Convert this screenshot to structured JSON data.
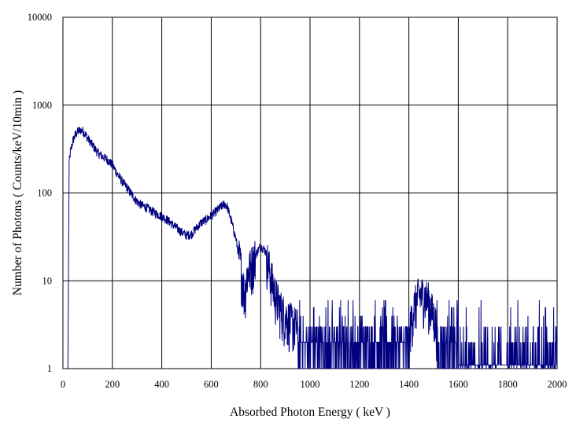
{
  "chart_data": {
    "type": "line",
    "title": "",
    "xlabel": "Absorbed Photon Energy  ( keV )",
    "ylabel": "Number  of Photons ( Counts/keV/10min  )",
    "xlim": [
      0,
      2000
    ],
    "ylim": [
      1,
      10000
    ],
    "yscale": "log",
    "grid": true,
    "legend": "none",
    "x_ticks": [
      "0",
      "200",
      "400",
      "600",
      "800",
      "1000",
      "1200",
      "1400",
      "1600",
      "1800",
      "2000"
    ],
    "y_ticks": [
      "1",
      "10",
      "100",
      "1000",
      "10000"
    ],
    "series_color": "#000080",
    "series": [
      {
        "x": [
          20,
          25,
          30,
          40,
          50,
          60,
          70,
          80,
          90,
          100,
          120,
          140,
          160,
          180,
          200,
          220,
          240,
          260,
          280,
          300,
          320,
          340,
          360,
          380,
          400,
          420,
          440,
          460,
          480,
          500,
          520,
          540,
          560,
          580,
          600,
          620,
          640,
          655,
          665,
          680,
          700,
          720,
          735,
          745,
          760,
          780,
          800,
          820,
          840,
          860,
          880,
          900,
          950,
          1000,
          1050,
          1100,
          1150,
          1200,
          1250,
          1300,
          1350,
          1400,
          1420,
          1440,
          1460,
          1480,
          1500,
          1520,
          1550,
          1600,
          1650,
          1700,
          1750,
          1800,
          1850,
          1900,
          1950,
          2000
        ],
        "y": [
          1,
          220,
          290,
          390,
          460,
          500,
          520,
          510,
          470,
          420,
          350,
          290,
          260,
          240,
          210,
          165,
          135,
          115,
          95,
          80,
          72,
          68,
          62,
          58,
          54,
          50,
          45,
          40,
          36,
          33,
          34,
          40,
          46,
          50,
          55,
          62,
          70,
          75,
          70,
          50,
          30,
          15,
          7,
          12,
          15,
          20,
          25,
          22,
          12,
          7,
          5,
          4,
          3,
          2.5,
          2.2,
          2,
          2,
          2,
          1.8,
          1.8,
          1.8,
          2.5,
          5,
          7,
          7,
          6,
          4,
          2.5,
          1.8,
          1.5,
          1.3,
          1.2,
          1.2,
          1.1,
          1.1,
          1.1,
          1.1,
          1.1
        ]
      }
    ]
  }
}
